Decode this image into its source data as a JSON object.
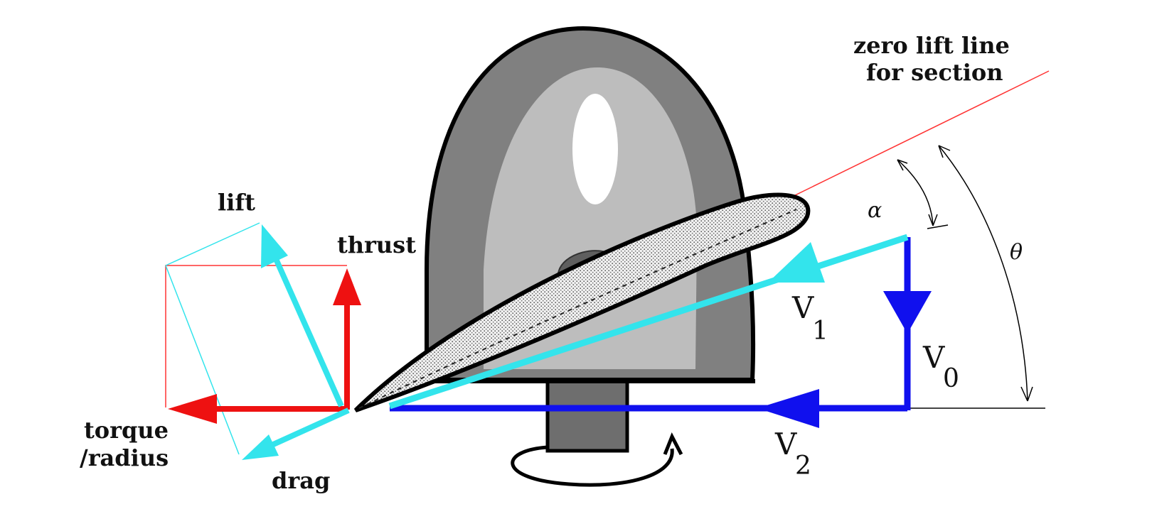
{
  "labels": {
    "zero_lift_line_1": "zero lift line",
    "zero_lift_line_2": "for section",
    "lift": "lift",
    "thrust": "thrust",
    "torque_1": "torque",
    "torque_2": "/radius",
    "drag": "drag",
    "alpha": "α",
    "theta": "θ",
    "v1": "V",
    "v1_sub": "1",
    "v0": "V",
    "v0_sub": "0",
    "v2": "V",
    "v2_sub": "2"
  },
  "colors": {
    "hub_dark": "#5f5f5f",
    "hub_mid": "#7f7f7f",
    "hub_light": "#bdbdbd",
    "velocity_blue": "#1010ee",
    "resultant_cyan": "#33e4ec",
    "force_red": "#ee1111",
    "zero_lift_red": "#ff3333",
    "outline": "#000000"
  }
}
